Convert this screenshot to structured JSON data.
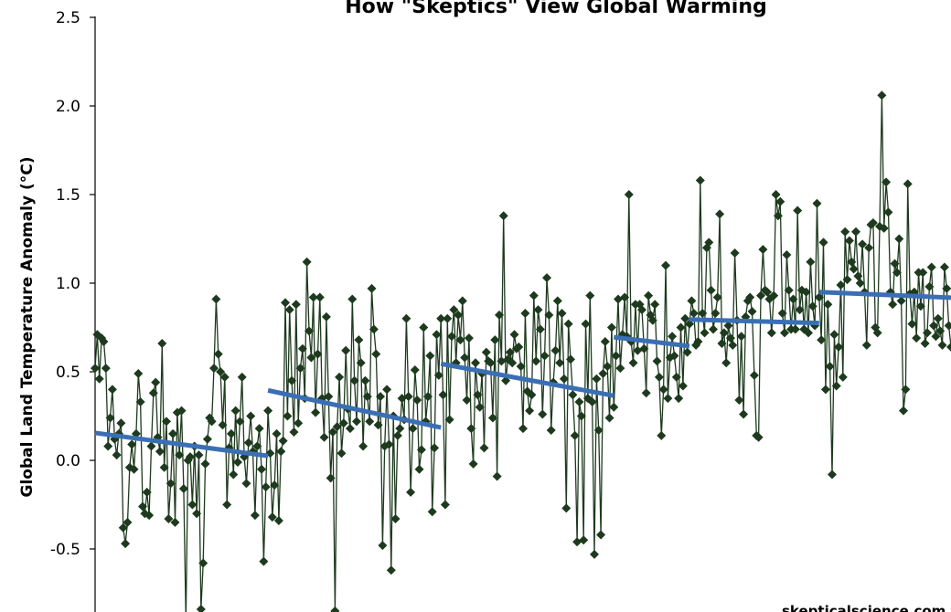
{
  "chart_data": {
    "type": "line",
    "title": "How \"Skeptics\" View Global Warming",
    "xlabel": "",
    "ylabel": "Global Land Temperature Anomaly (°C)",
    "ylim": [
      -0.85,
      2.5
    ],
    "yticks": [
      -0.5,
      0.0,
      0.5,
      1.0,
      1.5,
      2.0,
      2.5
    ],
    "ytick_labels": [
      "-0.5",
      "0.0",
      "0.5",
      "1.0",
      "1.5",
      "2.0",
      "2.5"
    ],
    "x_is_time_index": true,
    "grid": false,
    "legend": "none",
    "credit": "skepticalscience.com",
    "colors": {
      "series": "#1e3a1e",
      "marker": "#1e3a1e",
      "trend": "#3a6fb5"
    },
    "series": [
      {
        "values": [
          0.52,
          0.71,
          0.46,
          0.69,
          0.67,
          0.52,
          0.08,
          0.24,
          0.4,
          0.12,
          0.03,
          0.15,
          0.21,
          -0.38,
          -0.47,
          -0.35,
          -0.04,
          0.09,
          -0.05,
          0.15,
          0.49,
          0.33,
          -0.26,
          -0.3,
          -0.18,
          -0.31,
          0.08,
          0.38,
          0.44,
          0.13,
          0.05,
          0.66,
          -0.04,
          0.22,
          -0.33,
          -0.13,
          0.15,
          -0.35,
          0.27,
          0.03,
          0.28,
          -0.16,
          -0.9,
          0.0,
          0.02,
          -0.25,
          0.08,
          -0.3,
          0.03,
          -0.84,
          -0.58,
          -0.02,
          0.12,
          0.24,
          0.22,
          0.52,
          0.91,
          0.6,
          0.5,
          0.2,
          0.47,
          -0.25,
          0.07,
          0.15,
          -0.08,
          0.28,
          -0.01,
          0.22,
          0.47,
          0.02,
          -0.13,
          0.1,
          0.25,
          0.05,
          -0.31,
          0.08,
          0.18,
          -0.05,
          -0.57,
          -0.15,
          0.28,
          0.04,
          -0.32,
          -0.14,
          0.15,
          -0.34,
          0.05,
          0.11,
          0.89,
          0.25,
          0.85,
          0.45,
          0.16,
          0.88,
          0.21,
          0.52,
          0.63,
          0.35,
          1.12,
          0.73,
          0.58,
          0.92,
          0.27,
          0.6,
          0.92,
          0.35,
          0.13,
          0.81,
          0.36,
          -0.1,
          0.16,
          -0.85,
          0.19,
          0.47,
          0.04,
          0.21,
          0.62,
          0.29,
          0.18,
          0.91,
          0.45,
          0.22,
          0.68,
          0.55,
          0.08,
          0.45,
          0.36,
          0.22,
          0.97,
          0.74,
          0.6,
          0.2,
          0.36,
          -0.48,
          0.08,
          0.4,
          0.09,
          -0.62,
          0.25,
          -0.33,
          0.14,
          0.18,
          0.35,
          0.23,
          0.8,
          0.36,
          -0.18,
          0.18,
          0.51,
          0.34,
          -0.05,
          0.06,
          0.75,
          0.22,
          0.36,
          0.59,
          -0.29,
          0.07,
          0.71,
          0.48,
          0.8,
          0.37,
          -0.25,
          0.8,
          0.23,
          0.7,
          0.85,
          0.55,
          0.82,
          0.68,
          0.9,
          0.58,
          0.34,
          0.69,
          0.18,
          -0.02,
          0.55,
          0.37,
          0.3,
          0.49,
          0.07,
          0.61,
          0.56,
          0.55,
          0.24,
          0.68,
          -0.09,
          0.82,
          0.56,
          1.38,
          0.45,
          0.57,
          0.61,
          0.55,
          0.71,
          0.63,
          0.64,
          0.53,
          0.18,
          0.83,
          0.39,
          0.28,
          0.37,
          0.93,
          0.56,
          0.85,
          0.74,
          0.26,
          0.59,
          1.03,
          0.82,
          0.17,
          0.44,
          0.62,
          0.9,
          0.55,
          0.83,
          0.46,
          -0.27,
          0.77,
          0.57,
          0.37,
          0.14,
          -0.46,
          0.33,
          0.25,
          -0.45,
          0.77,
          0.35,
          0.93,
          0.33,
          -0.53,
          0.46,
          0.17,
          -0.42,
          0.49,
          0.67,
          0.53,
          0.24,
          0.75,
          0.3,
          0.59,
          0.91,
          0.52,
          0.71,
          0.92,
          0.7,
          1.5,
          0.67,
          0.55,
          0.88,
          0.62,
          0.88,
          0.85,
          0.63,
          0.38,
          0.93,
          0.82,
          0.79,
          0.88,
          0.56,
          0.47,
          0.14,
          0.4,
          1.1,
          0.35,
          0.58,
          0.7,
          0.59,
          0.47,
          0.35,
          0.75,
          0.42,
          0.8,
          0.61,
          0.77,
          0.9,
          0.83,
          0.65,
          0.67,
          1.58,
          0.83,
          0.72,
          1.2,
          1.23,
          0.96,
          0.74,
          0.83,
          0.92,
          1.39,
          0.66,
          0.72,
          0.55,
          0.76,
          0.69,
          0.65,
          1.17,
          0.79,
          0.34,
          0.7,
          0.26,
          0.81,
          0.9,
          0.92,
          0.84,
          0.48,
          0.14,
          0.13,
          0.93,
          1.19,
          0.96,
          0.95,
          0.91,
          0.72,
          0.93,
          1.5,
          1.38,
          1.46,
          0.83,
          0.72,
          1.16,
          0.96,
          0.74,
          0.91,
          0.74,
          1.41,
          0.85,
          0.96,
          0.74,
          0.95,
          0.72,
          1.12,
          0.87,
          0.76,
          1.45,
          0.92,
          0.68,
          1.23,
          0.4,
          0.88,
          0.53,
          -0.08,
          0.71,
          0.42,
          0.64,
          0.99,
          0.47,
          1.29,
          1.02,
          1.24,
          1.12,
          1.08,
          1.29,
          1.04,
          1.0,
          1.22,
          0.95,
          0.65,
          1.2,
          1.33,
          1.34,
          0.75,
          0.72,
          1.32,
          2.06,
          1.31,
          1.57,
          1.4,
          0.95,
          0.88,
          1.11,
          1.06,
          1.25,
          0.9,
          0.28,
          0.4,
          1.56,
          0.94,
          0.77,
          0.95,
          0.69,
          1.06,
          0.87,
          1.06,
          0.66,
          0.72,
          0.98,
          1.09,
          0.76,
          0.7,
          0.8,
          0.73,
          0.65,
          1.09,
          0.97,
          0.76,
          0.64
        ]
      }
    ],
    "trend_segments": [
      {
        "x_start": 0,
        "x_end": 80,
        "y_start": 0.155,
        "y_end": 0.025
      },
      {
        "x_start": 80,
        "x_end": 160,
        "y_start": 0.395,
        "y_end": 0.185
      },
      {
        "x_start": 160,
        "x_end": 240,
        "y_start": 0.545,
        "y_end": 0.365
      },
      {
        "x_start": 240,
        "x_end": 275,
        "y_start": 0.695,
        "y_end": 0.645
      },
      {
        "x_start": 275,
        "x_end": 335,
        "y_start": 0.795,
        "y_end": 0.775
      },
      {
        "x_start": 335,
        "x_end": 412,
        "y_start": 0.95,
        "y_end": 0.91
      }
    ]
  }
}
